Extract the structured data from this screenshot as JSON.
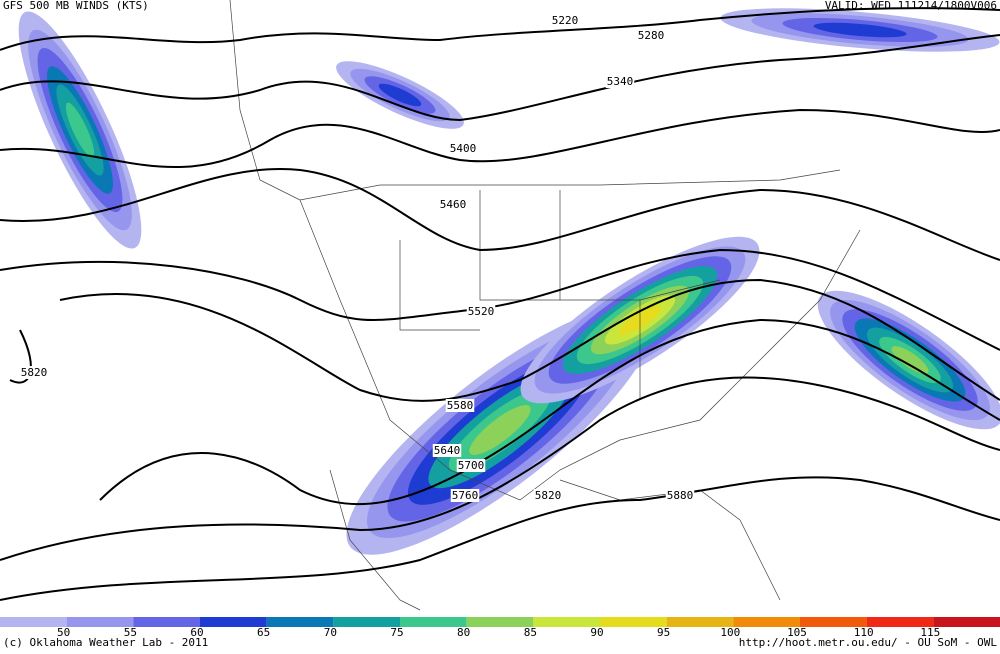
{
  "header": {
    "title": "GFS 500 MB WINDS (KTS)",
    "valid": "VALID: WED 111214/1800V006"
  },
  "contour_labels": [
    "5220",
    "5280",
    "5340",
    "5400",
    "5460",
    "5520",
    "5580",
    "5640",
    "5700",
    "5760",
    "5820",
    "5880",
    "5820"
  ],
  "legend": {
    "labels": [
      "50",
      "55",
      "60",
      "65",
      "70",
      "75",
      "80",
      "85",
      "90",
      "95",
      "100",
      "105",
      "110",
      "115"
    ],
    "colors": [
      "#b4b4f0",
      "#9696ee",
      "#6464e6",
      "#1e3cd2",
      "#0a78b4",
      "#14a0a0",
      "#3cc88c",
      "#8cd25a",
      "#c8e63c",
      "#e6dc1e",
      "#e6b414",
      "#f08c0a",
      "#f05a0a",
      "#f02814",
      "#c8141e"
    ]
  },
  "footer": {
    "credit": "(c) Oklahoma Weather Lab - 2011",
    "url": "http://hoot.metr.ou.edu/ - OU SoM - OWL"
  }
}
